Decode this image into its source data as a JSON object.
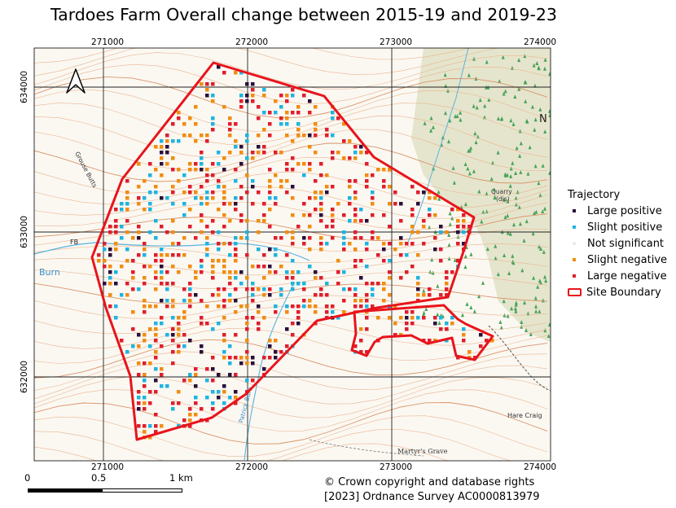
{
  "title": "Tardoes Farm Overall change between 2015-19 and 2019-23",
  "grid_labels": {
    "eastings": [
      "271000",
      "272000",
      "273000",
      "274000"
    ],
    "northings": [
      "634000",
      "633000",
      "632000"
    ]
  },
  "north_arrow": "north-arrow-icon",
  "map_labels": {
    "burn": "Burn",
    "fb": "FB",
    "quarry_1": "Quarry",
    "quarry_2": "(dis)",
    "hare_craig": "Hare Craig",
    "martyrs_grave": "Martyr's Grave",
    "grouse_butts": "Grouse Butts",
    "patrick_burn": "Patrick Burn",
    "n_edge": "N"
  },
  "legend": {
    "title": "Trajectory",
    "items": [
      {
        "label": "Large positive",
        "color": "#2a0f3b"
      },
      {
        "label": "Slight positive",
        "color": "#1fb4e0"
      },
      {
        "label": "Not significant",
        "color": "#ebebeb"
      },
      {
        "label": "Slight negative",
        "color": "#f08d12"
      },
      {
        "label": "Large negative",
        "color": "#e01e2c"
      }
    ],
    "boundary_label": "Site Boundary",
    "boundary_color": "#e8141b"
  },
  "scale": {
    "labels": [
      "0",
      "0.5",
      "1 km"
    ]
  },
  "credit": {
    "line1": "© Crown copyright and database rights",
    "line2": "[2023] Ordnance Survey AC0000813979"
  }
}
